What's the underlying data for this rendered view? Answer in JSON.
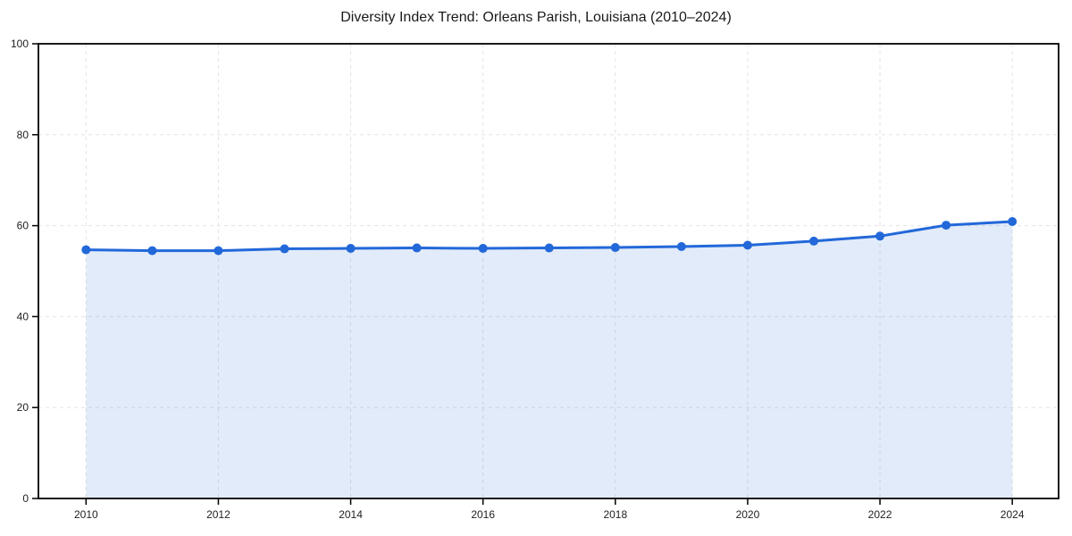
{
  "chart_data": {
    "type": "area",
    "title": "Diversity Index Trend: Orleans Parish, Louisiana (2010–2024)",
    "xlabel": "",
    "ylabel": "",
    "x": [
      2010,
      2011,
      2012,
      2013,
      2014,
      2015,
      2016,
      2017,
      2018,
      2019,
      2020,
      2021,
      2022,
      2023,
      2024
    ],
    "values": [
      54.7,
      54.5,
      54.5,
      54.9,
      55.0,
      55.1,
      55.0,
      55.1,
      55.2,
      55.4,
      55.7,
      56.6,
      57.7,
      60.1,
      60.9
    ],
    "xticks": [
      2010,
      2012,
      2014,
      2016,
      2018,
      2020,
      2022,
      2024
    ],
    "yticks": [
      0,
      20,
      40,
      60,
      80,
      100
    ],
    "xlim": [
      2009.28,
      2024.7
    ],
    "ylim": [
      0,
      100
    ],
    "grid": "dashed",
    "legend": "none",
    "colors": {
      "line": "#2268d9",
      "marker": "#2268d9",
      "fill": "rgba(34, 104, 217, 0.13)",
      "gridline": "#e3e3e3",
      "axis": "#000000",
      "tick_text": "#222222",
      "title_text": "#1a1a1a",
      "background": "#ffffff"
    }
  }
}
